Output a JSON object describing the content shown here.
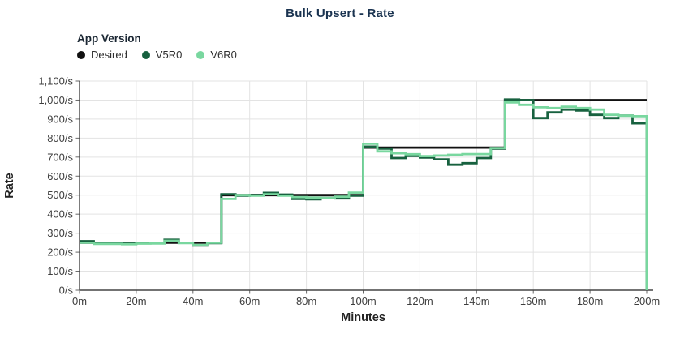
{
  "page": {
    "background": "#ffffff"
  },
  "colors": {
    "grid": "#e3e3e3",
    "axis_line": "#454545",
    "tick_mark": "#666666",
    "tick_text": "#3d3d3d",
    "axis_label_text": "#222222",
    "title_text": "#1a3350"
  },
  "chart_data": {
    "type": "line",
    "line_shape": "step-after",
    "title": "Bulk Upsert - Rate",
    "legend_title": "App Version",
    "legend_position": "top-left",
    "xlabel": "Minutes",
    "ylabel": "Rate",
    "xlim": [
      0,
      200
    ],
    "ylim": [
      0,
      1100
    ],
    "grid": true,
    "x_ticks": [
      0,
      20,
      40,
      60,
      80,
      100,
      120,
      140,
      160,
      180,
      200
    ],
    "x_tick_labels": [
      "0m",
      "20m",
      "40m",
      "60m",
      "80m",
      "100m",
      "120m",
      "140m",
      "160m",
      "180m",
      "200m"
    ],
    "y_ticks": [
      0,
      100,
      200,
      300,
      400,
      500,
      600,
      700,
      800,
      900,
      1000,
      1100
    ],
    "y_tick_labels": [
      "0/s",
      "100/s",
      "200/s",
      "300/s",
      "400/s",
      "500/s",
      "600/s",
      "700/s",
      "800/s",
      "900/s",
      "1,000/s",
      "1,100/s"
    ],
    "x_step_minutes": 5,
    "x": [
      0,
      5,
      10,
      15,
      20,
      25,
      30,
      35,
      40,
      45,
      50,
      55,
      60,
      65,
      70,
      75,
      80,
      85,
      90,
      95,
      100,
      105,
      110,
      115,
      120,
      125,
      130,
      135,
      140,
      145,
      150,
      155,
      160,
      165,
      170,
      175,
      180,
      185,
      190,
      195
    ],
    "series": [
      {
        "name": "Desired",
        "color": "#111111",
        "end_drop_to_zero": false,
        "values": [
          250,
          250,
          250,
          250,
          250,
          250,
          250,
          250,
          250,
          250,
          500,
          500,
          500,
          500,
          500,
          500,
          500,
          500,
          500,
          500,
          750,
          750,
          750,
          750,
          750,
          750,
          750,
          750,
          750,
          750,
          1000,
          1000,
          1000,
          1000,
          1000,
          1000,
          1000,
          1000,
          1000,
          1000
        ]
      },
      {
        "name": "V5R0",
        "color": "#17613f",
        "end_drop_to_zero": true,
        "values": [
          258,
          248,
          246,
          245,
          247,
          250,
          265,
          250,
          235,
          248,
          505,
          497,
          500,
          512,
          503,
          480,
          478,
          485,
          483,
          497,
          755,
          745,
          695,
          706,
          698,
          688,
          660,
          668,
          695,
          745,
          1003,
          1000,
          905,
          935,
          950,
          945,
          922,
          905,
          918,
          878
        ]
      },
      {
        "name": "V6R0",
        "color": "#79d79f",
        "end_drop_to_zero": true,
        "values": [
          250,
          244,
          244,
          242,
          245,
          246,
          260,
          248,
          238,
          250,
          480,
          500,
          497,
          505,
          497,
          490,
          487,
          485,
          492,
          513,
          770,
          730,
          720,
          715,
          705,
          708,
          712,
          716,
          716,
          748,
          988,
          975,
          962,
          958,
          965,
          958,
          950,
          922,
          918,
          915
        ]
      }
    ]
  }
}
